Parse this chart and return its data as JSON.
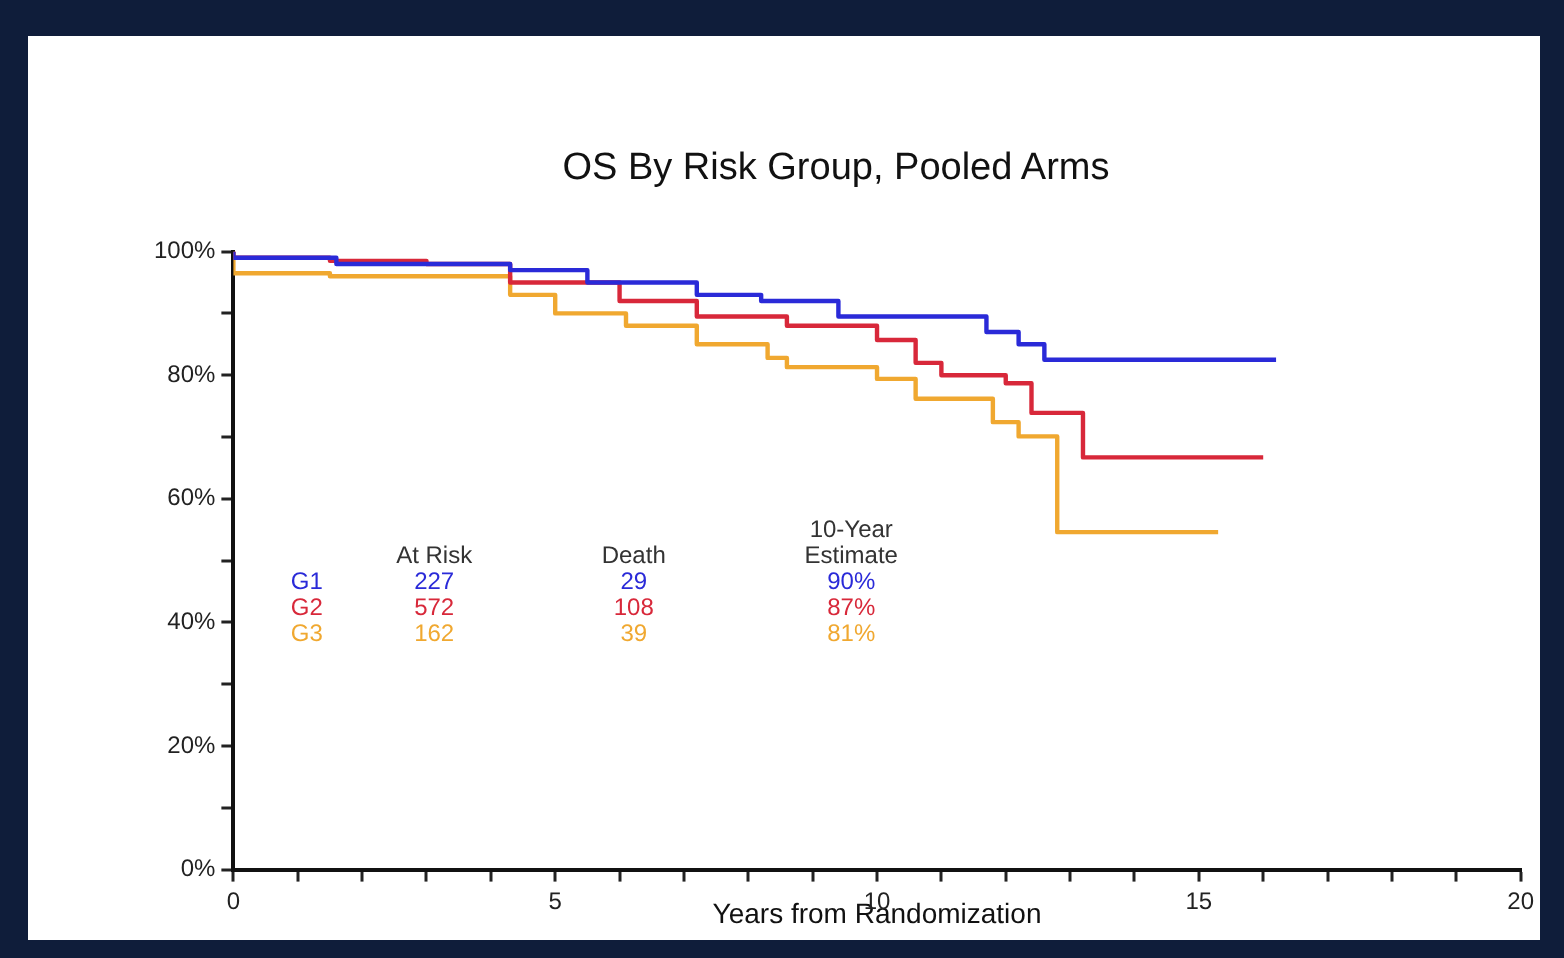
{
  "chart_data": {
    "type": "step",
    "title": "OS By Risk Group, Pooled Arms",
    "xlabel": "Years from Randomization",
    "xlim": [
      0,
      20
    ],
    "xticks": [
      0,
      {
        "value": 1,
        "label": null
      },
      {
        "value": 2,
        "label": null
      },
      {
        "value": 3,
        "label": null
      },
      {
        "value": 4,
        "label": null
      },
      5,
      {
        "value": 6,
        "label": null
      },
      {
        "value": 7,
        "label": null
      },
      {
        "value": 8,
        "label": null
      },
      {
        "value": 9,
        "label": null
      },
      10,
      {
        "value": 11,
        "label": null
      },
      {
        "value": 12,
        "label": null
      },
      {
        "value": 13,
        "label": null
      },
      {
        "value": 14,
        "label": null
      },
      15,
      {
        "value": 16,
        "label": null
      },
      {
        "value": 17,
        "label": null
      },
      {
        "value": 18,
        "label": null
      },
      {
        "value": 19,
        "label": null
      },
      20
    ],
    "ylim": [
      0,
      100
    ],
    "yticks": [
      {
        "value": 0,
        "label": "0%"
      },
      {
        "value": 10,
        "label": null
      },
      {
        "value": 20,
        "label": "20%"
      },
      {
        "value": 30,
        "label": null
      },
      {
        "value": 40,
        "label": "40%"
      },
      {
        "value": 50,
        "label": null
      },
      {
        "value": 60,
        "label": "60%"
      },
      {
        "value": 70,
        "label": null
      },
      {
        "value": 80,
        "label": "80%"
      },
      {
        "value": 90,
        "label": null
      },
      {
        "value": 100,
        "label": "100%"
      }
    ],
    "grid": false,
    "legend": false,
    "marker": "none",
    "line_style": "solid",
    "series": [
      {
        "name": "G1",
        "color": "#2a2ad8",
        "x": [
          0,
          1.6,
          4.3,
          5.5,
          7.2,
          8.2,
          9.4,
          10,
          11.7,
          12.2,
          12.6,
          13,
          16.2
        ],
        "values": [
          100,
          99,
          98,
          97,
          95,
          93,
          92,
          89.5,
          89.5,
          87,
          85,
          82.5,
          82.5
        ]
      },
      {
        "name": "G2",
        "color": "#d8283a",
        "x": [
          0,
          1.5,
          3,
          4.3,
          6,
          7.2,
          8.6,
          10,
          10.6,
          11,
          12,
          12.4,
          13.2,
          15.1,
          16
        ],
        "values": [
          100,
          99,
          98.5,
          98,
          95,
          92,
          89.5,
          88,
          85.7,
          82,
          80,
          78.7,
          73.9,
          66.7,
          66.7
        ]
      },
      {
        "name": "G3",
        "color": "#f0a830",
        "x": [
          0,
          1.5,
          4.3,
          5,
          6.1,
          7.2,
          8.3,
          8.6,
          10,
          10.6,
          11.8,
          12.2,
          12.8,
          14.3,
          15.3
        ],
        "values": [
          100,
          96.5,
          96,
          93,
          90,
          88,
          85,
          82.8,
          81.3,
          79.4,
          76.2,
          72.4,
          70.1,
          54.6,
          54.6
        ]
      }
    ],
    "annotations": [
      "At Risk",
      "Death",
      "10-Year Estimate",
      "227",
      "29",
      "90%",
      "572",
      "108",
      "87%",
      "162",
      "39",
      "81%"
    ]
  }
}
